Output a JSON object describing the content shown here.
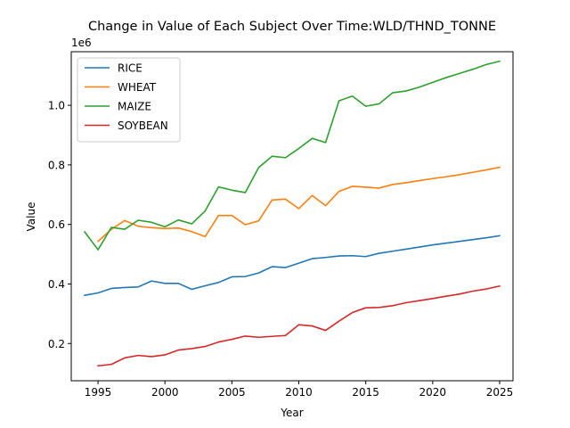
{
  "chart_data": {
    "type": "line",
    "title": "Change in Value of Each Subject Over Time:WLD/THND_TONNE",
    "xlabel": "Year",
    "ylabel": "Value",
    "y_offset_label": "1e6",
    "xlim": [
      1993,
      2026
    ],
    "ylim": [
      0.075,
      1.18
    ],
    "y_multiplier": 1000000,
    "x_ticks": [
      1995,
      2000,
      2005,
      2010,
      2015,
      2020,
      2025
    ],
    "y_ticks": [
      0.2,
      0.4,
      0.6,
      0.8,
      1.0
    ],
    "y_tick_labels": [
      "0.2",
      "0.4",
      "0.6",
      "0.8",
      "1.0"
    ],
    "grid": false,
    "legend_position": "top-left",
    "series": [
      {
        "name": "RICE",
        "color": "#1f77b4",
        "x": [
          1994,
          1995,
          1996,
          1997,
          1998,
          1999,
          2000,
          2001,
          2002,
          2003,
          2004,
          2005,
          2006,
          2007,
          2008,
          2009,
          2010,
          2011,
          2012,
          2013,
          2014,
          2015,
          2016,
          2017,
          2018,
          2019,
          2020,
          2021,
          2022,
          2023,
          2024,
          2025
        ],
        "values": [
          0.362,
          0.37,
          0.385,
          0.388,
          0.39,
          0.41,
          0.402,
          0.402,
          0.382,
          0.394,
          0.405,
          0.424,
          0.425,
          0.437,
          0.458,
          0.455,
          0.47,
          0.485,
          0.489,
          0.494,
          0.495,
          0.492,
          0.503,
          0.51,
          0.517,
          0.524,
          0.531,
          0.537,
          0.543,
          0.549,
          0.555,
          0.562
        ]
      },
      {
        "name": "WHEAT",
        "color": "#ff7f0e",
        "x": [
          1995,
          1996,
          1997,
          1998,
          1999,
          2000,
          2001,
          2002,
          2003,
          2004,
          2005,
          2006,
          2007,
          2008,
          2009,
          2010,
          2011,
          2012,
          2013,
          2014,
          2015,
          2016,
          2017,
          2018,
          2019,
          2020,
          2021,
          2022,
          2023,
          2024,
          2025
        ],
        "values": [
          0.543,
          0.584,
          0.613,
          0.594,
          0.589,
          0.586,
          0.588,
          0.576,
          0.559,
          0.63,
          0.63,
          0.599,
          0.612,
          0.682,
          0.685,
          0.653,
          0.697,
          0.663,
          0.711,
          0.728,
          0.725,
          0.722,
          0.734,
          0.74,
          0.747,
          0.754,
          0.76,
          0.767,
          0.775,
          0.783,
          0.792
        ]
      },
      {
        "name": "MAIZE",
        "color": "#2ca02c",
        "x": [
          1994,
          1995,
          1996,
          1997,
          1998,
          1999,
          2000,
          2001,
          2002,
          2003,
          2004,
          2005,
          2006,
          2007,
          2008,
          2009,
          2010,
          2011,
          2012,
          2013,
          2014,
          2015,
          2016,
          2017,
          2018,
          2019,
          2020,
          2021,
          2022,
          2023,
          2024,
          2025
        ],
        "values": [
          0.575,
          0.515,
          0.59,
          0.584,
          0.614,
          0.607,
          0.592,
          0.615,
          0.602,
          0.645,
          0.726,
          0.715,
          0.707,
          0.791,
          0.829,
          0.824,
          0.855,
          0.889,
          0.875,
          1.015,
          1.031,
          0.997,
          1.005,
          1.042,
          1.048,
          1.061,
          1.077,
          1.093,
          1.107,
          1.121,
          1.137,
          1.148
        ]
      },
      {
        "name": "SOYBEAN",
        "color": "#d62728",
        "x": [
          1995,
          1996,
          1997,
          1998,
          1999,
          2000,
          2001,
          2002,
          2003,
          2004,
          2005,
          2006,
          2007,
          2008,
          2009,
          2010,
          2011,
          2012,
          2013,
          2014,
          2015,
          2016,
          2017,
          2018,
          2019,
          2020,
          2021,
          2022,
          2023,
          2024,
          2025
        ],
        "values": [
          0.125,
          0.13,
          0.152,
          0.16,
          0.156,
          0.162,
          0.178,
          0.183,
          0.19,
          0.205,
          0.214,
          0.225,
          0.221,
          0.224,
          0.227,
          0.263,
          0.259,
          0.244,
          0.275,
          0.304,
          0.32,
          0.321,
          0.327,
          0.337,
          0.344,
          0.351,
          0.359,
          0.366,
          0.376,
          0.383,
          0.393
        ]
      }
    ]
  }
}
